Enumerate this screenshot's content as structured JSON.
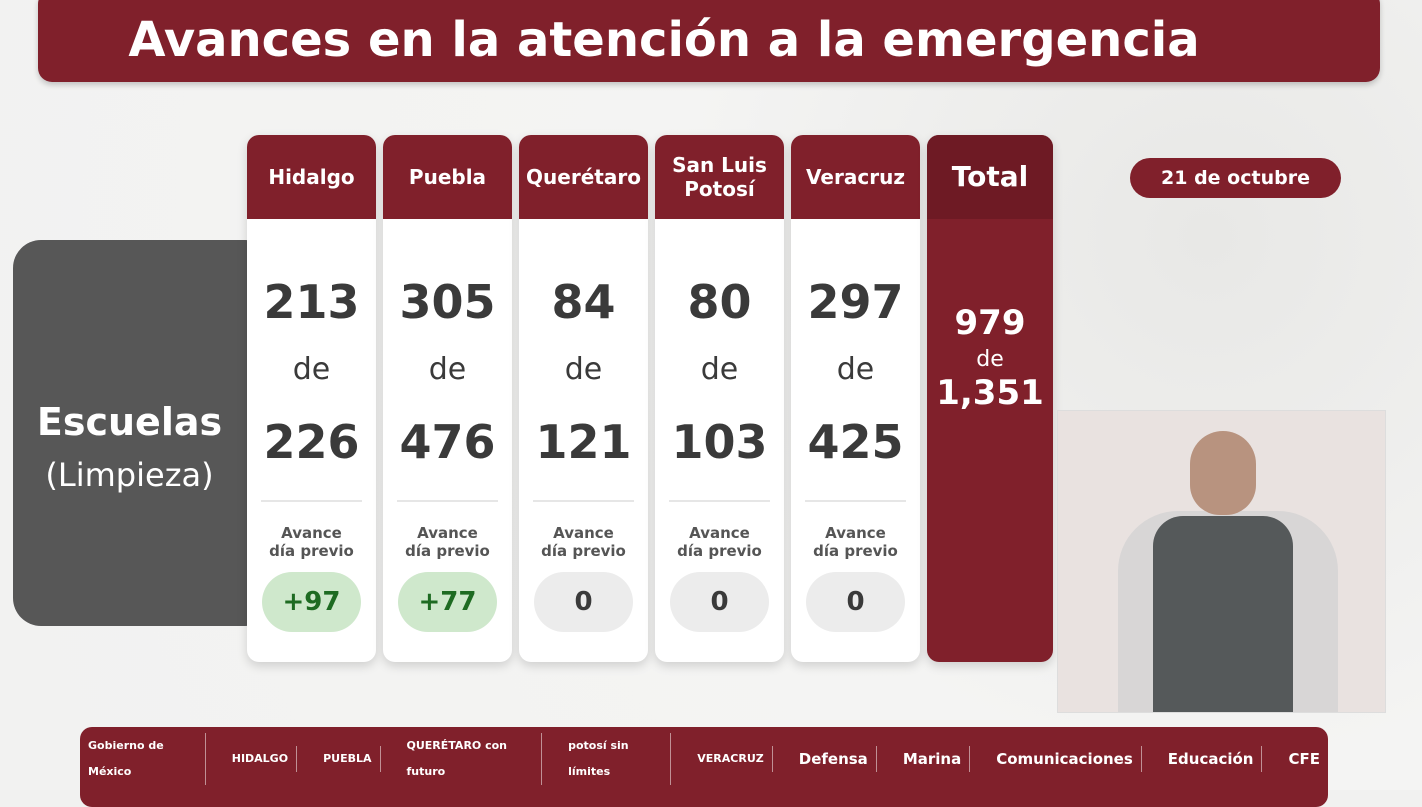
{
  "title": "Avances en la atención a la emergencia",
  "category": {
    "title": "Escuelas",
    "subtitle": "(Limpieza)"
  },
  "date": "21 de octubre",
  "connector": "de",
  "avance_label_1": "Avance",
  "avance_label_2": "día previo",
  "states": [
    {
      "name": "Hidalgo",
      "done": "213",
      "total": "226",
      "delta": "+97",
      "positive": true
    },
    {
      "name": "Puebla",
      "done": "305",
      "total": "476",
      "delta": "+77",
      "positive": true
    },
    {
      "name": "Querétaro",
      "done": "84",
      "total": "121",
      "delta": "0",
      "positive": false
    },
    {
      "name": "San Luis Potosí",
      "done": "80",
      "total": "103",
      "delta": "0",
      "positive": false
    },
    {
      "name": "Veracruz",
      "done": "297",
      "total": "425",
      "delta": "0",
      "positive": false
    }
  ],
  "total": {
    "label": "Total",
    "done": "979",
    "total": "1,351"
  },
  "footer_logos": [
    "Gobierno de México",
    "HIDALGO",
    "PUEBLA",
    "QUERÉTARO con futuro",
    "potosí sin límites",
    "VERACRUZ",
    "Defensa",
    "Marina",
    "Comunicaciones",
    "Educación",
    "CFE"
  ],
  "colors": {
    "brand": "#80202b",
    "positive": "#cfe8cc",
    "neutral": "#ececec",
    "panel": "#575757"
  }
}
